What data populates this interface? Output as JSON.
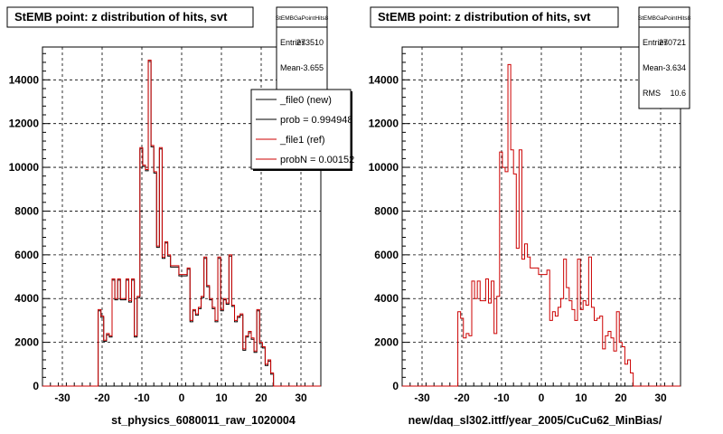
{
  "footer": {
    "text": ""
  },
  "chart_data": [
    {
      "type": "step",
      "title": "StEMB point: z distribution of hits, svt",
      "xlabel": "st_physics_6080011_raw_1020004",
      "ylabel": "",
      "xlim": [
        -35,
        35
      ],
      "ylim": [
        0,
        15500
      ],
      "xticks": [
        -30,
        -20,
        -10,
        0,
        10,
        20,
        30
      ],
      "yticks": [
        0,
        2000,
        4000,
        6000,
        8000,
        10000,
        12000,
        14000
      ],
      "grid": true,
      "stats": {
        "name": "StEMBGaPointHits8",
        "rows": [
          {
            "label": "Entries",
            "value": "273510"
          },
          {
            "label": "Mean",
            "value": "-3.655"
          }
        ]
      },
      "legend": {
        "placement": "top-right",
        "entries": [
          {
            "label": "_file0 (new)",
            "color": "#000000"
          },
          {
            "label": "prob = 0.994948",
            "color": "#000000"
          },
          {
            "label": "_file1 (ref)",
            "color": "#cc0000"
          },
          {
            "label": "probN = 0.00152",
            "color": "#cc0000"
          }
        ]
      },
      "series": [
        {
          "name": "_file0 (new)",
          "color": "#000000"
        },
        {
          "name": "_file1 (ref)",
          "color": "#cc0000"
        }
      ],
      "bin_edges_start": -35,
      "bin_width": 0.7,
      "values": [
        0,
        0,
        0,
        0,
        0,
        0,
        0,
        0,
        0,
        0,
        0,
        0,
        0,
        0,
        0,
        0,
        0,
        0,
        0,
        0,
        3500,
        3200,
        2100,
        2400,
        2300,
        4900,
        4000,
        4900,
        4000,
        4000,
        4900,
        3900,
        4900,
        2300,
        4100,
        10900,
        10100,
        9900,
        14900,
        11000,
        9800,
        6400,
        10900,
        5900,
        6600,
        6000,
        5500,
        5500,
        5500,
        5100,
        5100,
        5100,
        5400,
        3000,
        3500,
        3300,
        3600,
        4100,
        5900,
        4600,
        4000,
        3600,
        3000,
        5900,
        3500,
        4000,
        3800,
        6000,
        3700,
        3000,
        3200,
        3300,
        1700,
        2300,
        2500,
        2200,
        1600,
        3500,
        2000,
        1800,
        1000,
        1200,
        600,
        0,
        0,
        0,
        0,
        0,
        0,
        0,
        0,
        0,
        0,
        0,
        0,
        0,
        0,
        0,
        0,
        0
      ]
    },
    {
      "type": "step",
      "title": "StEMB point: z distribution of hits, svt",
      "xlabel": "new/daq_sl302.ittf/year_2005/CuCu62_MinBias/",
      "ylabel": "",
      "xlim": [
        -35,
        35
      ],
      "ylim": [
        0,
        15500
      ],
      "xticks": [
        -30,
        -20,
        -10,
        0,
        10,
        20,
        30
      ],
      "yticks": [
        0,
        2000,
        4000,
        6000,
        8000,
        10000,
        12000,
        14000
      ],
      "grid": true,
      "stats": {
        "name": "StEMBGaPointHits8",
        "rows": [
          {
            "label": "Entries",
            "value": "270721"
          },
          {
            "label": "Mean",
            "value": "-3.634"
          },
          {
            "label": "RMS",
            "value": "10.6"
          }
        ]
      },
      "series": [
        {
          "name": "",
          "color": "#cc0000"
        }
      ],
      "bin_edges_start": -35,
      "bin_width": 0.7,
      "values": [
        0,
        0,
        0,
        0,
        0,
        0,
        0,
        0,
        0,
        0,
        0,
        0,
        0,
        0,
        0,
        0,
        0,
        0,
        0,
        0,
        3400,
        3100,
        2200,
        2400,
        2300,
        4800,
        4000,
        4800,
        3900,
        3900,
        4900,
        3800,
        4800,
        2400,
        4100,
        10700,
        10000,
        9800,
        14700,
        10800,
        9700,
        6300,
        10800,
        5800,
        6500,
        5900,
        5400,
        5400,
        5400,
        5100,
        5100,
        5100,
        5300,
        3000,
        3400,
        3200,
        3600,
        4000,
        5800,
        4500,
        3900,
        3500,
        3000,
        5800,
        3500,
        3900,
        3700,
        5900,
        3600,
        3000,
        3100,
        3200,
        1700,
        2300,
        2500,
        2200,
        1600,
        3400,
        2000,
        1800,
        1000,
        1200,
        600,
        0,
        0,
        0,
        0,
        0,
        0,
        0,
        0,
        0,
        0,
        0,
        0,
        0,
        0,
        0,
        0,
        0
      ]
    }
  ]
}
